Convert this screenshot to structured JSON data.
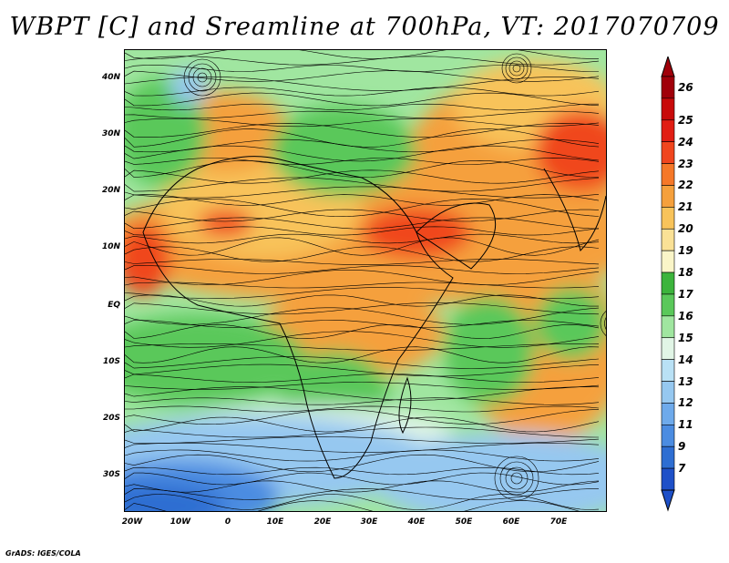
{
  "title": "WBPT [C] and Sreamline at 700hPa, VT: 2017070709",
  "footer": "GrADS: IGES/COLA",
  "lat_labels": [
    "40N",
    "30N",
    "20N",
    "10N",
    "EQ",
    "10S",
    "20S",
    "30S"
  ],
  "lon_labels": [
    "20W",
    "10W",
    "0",
    "10E",
    "20E",
    "30E",
    "40E",
    "50E",
    "60E",
    "70E"
  ],
  "colorbar": {
    "labels": [
      "26",
      "25",
      "24",
      "23",
      "22",
      "21",
      "20",
      "19",
      "18",
      "17",
      "16",
      "15",
      "14",
      "13",
      "12",
      "11",
      "9",
      "7"
    ],
    "colors": [
      "#a0000a",
      "#c80a0a",
      "#e11e14",
      "#f0461e",
      "#f57828",
      "#f5a03c",
      "#f8c35a",
      "#fae196",
      "#faf5c8",
      "#3cb43c",
      "#5ac85a",
      "#a0e6a0",
      "#e1f5e6",
      "#b9e1f5",
      "#96c8f0",
      "#6eaaeb",
      "#4b8ce1",
      "#2e6ed2",
      "#1e50c8"
    ],
    "arrow_top_color": "#a0000a",
    "arrow_bottom_color": "#1e50c8"
  },
  "map": {
    "colors": {
      "warm": "#f5a03c",
      "hot": "#f0461e",
      "pale": "#fae196",
      "green": "#5ac85a",
      "lightgreen": "#a0e6a0",
      "cyan": "#e1f5e6",
      "blue": "#96c8f0",
      "deepblue": "#2e6ed2"
    }
  }
}
